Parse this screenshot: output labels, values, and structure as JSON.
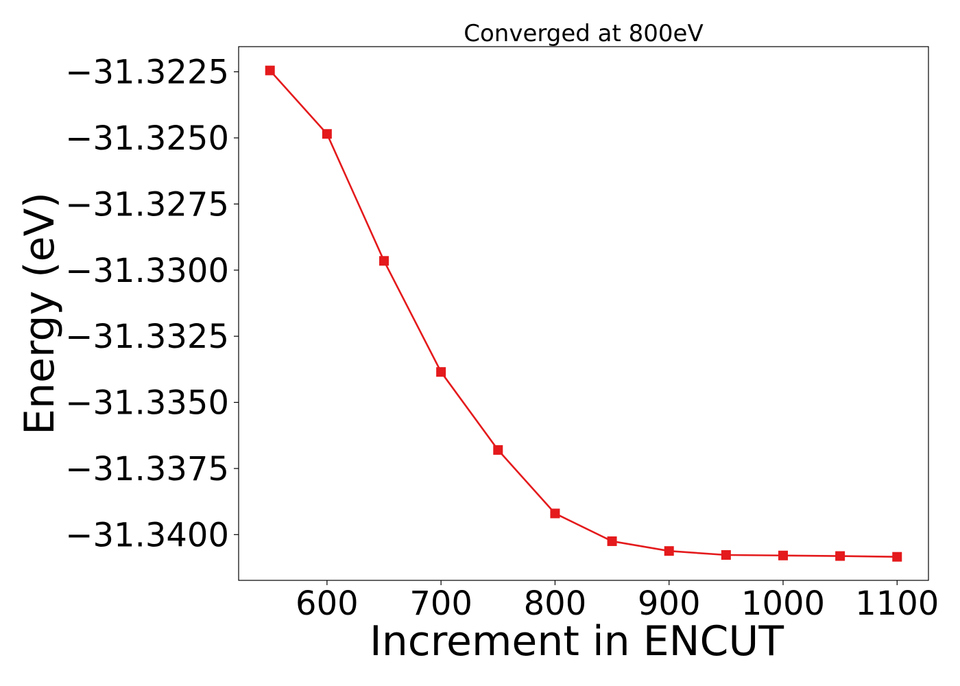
{
  "chart_data": {
    "type": "line",
    "title": "Converged at 800eV",
    "xlabel": "Increment in ENCUT",
    "ylabel": "Energy (eV)",
    "x": [
      550,
      600,
      650,
      700,
      750,
      800,
      850,
      900,
      950,
      1000,
      1050,
      1100
    ],
    "series": [
      {
        "name": "",
        "values": [
          -31.32245,
          -31.32485,
          -31.32965,
          -31.33385,
          -31.3368,
          -31.3392,
          -31.34025,
          -31.34062,
          -31.34077,
          -31.34079,
          -31.34081,
          -31.34084
        ],
        "color": "#e41a1c",
        "marker": "square"
      }
    ],
    "xlim": [
      522.5,
      1127.5
    ],
    "ylim": [
      -31.34173,
      -31.32155
    ],
    "xticks": [
      600,
      700,
      800,
      900,
      1000,
      1100
    ],
    "xtick_labels": [
      "600",
      "700",
      "800",
      "900",
      "1000",
      "1100"
    ],
    "yticks": [
      -31.3225,
      -31.325,
      -31.3275,
      -31.33,
      -31.3325,
      -31.335,
      -31.3375,
      -31.34
    ],
    "ytick_labels": [
      "−31.3225",
      "−31.3250",
      "−31.3275",
      "−31.3300",
      "−31.3325",
      "−31.3350",
      "−31.3375",
      "−31.3400"
    ],
    "grid": false,
    "legend": "none"
  }
}
